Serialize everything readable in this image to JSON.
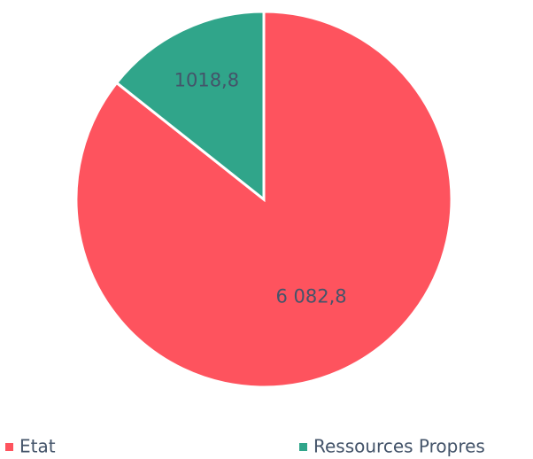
{
  "chart_data": {
    "type": "pie",
    "categories": [
      "Etat",
      "Ressources Propres"
    ],
    "values": [
      6082.8,
      1018.8
    ],
    "value_labels": [
      "6 082,8",
      "1018,8"
    ],
    "colors": [
      "#fe535e",
      "#30a58a"
    ]
  }
}
